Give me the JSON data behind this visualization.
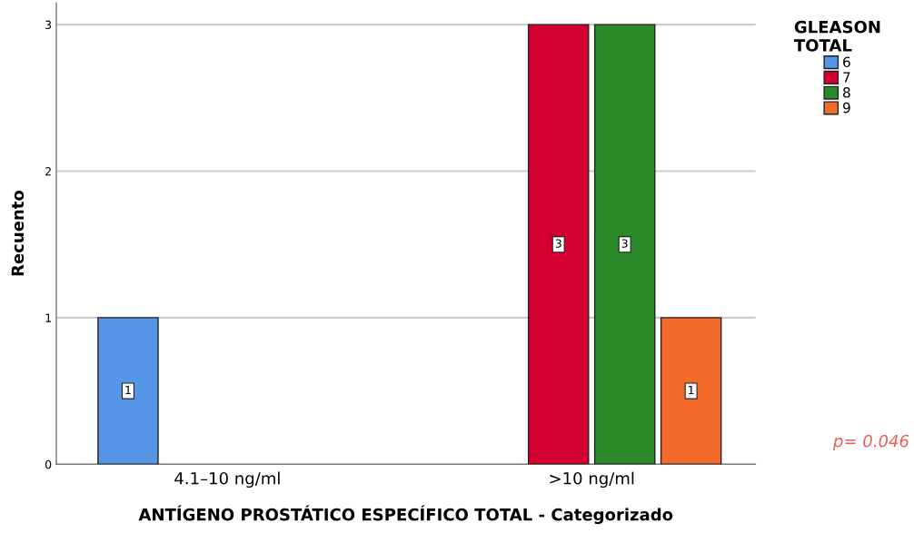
{
  "chart_data": {
    "type": "bar",
    "xlabel": "ANTÍGENO PROSTÁTICO ESPECÍFICO TOTAL - Categorizado",
    "ylabel": "Recuento",
    "categories": [
      "4.1–10 ng/ml",
      ">10 ng/ml"
    ],
    "series": [
      {
        "name": "6",
        "color": "#5596e6",
        "values": [
          1,
          null
        ]
      },
      {
        "name": "7",
        "color": "#d50032",
        "values": [
          null,
          3
        ]
      },
      {
        "name": "8",
        "color": "#2a8a2a",
        "values": [
          null,
          3
        ]
      },
      {
        "name": "9",
        "color": "#f26b2c",
        "values": [
          null,
          1
        ]
      }
    ],
    "legend_title": "GLEASON\nTOTAL",
    "legend": "top right",
    "ylim": [
      0,
      3.15
    ],
    "yticks": [
      0,
      1,
      2,
      3
    ],
    "grid": "y",
    "data_labels": true,
    "annotations": [
      "p= 0.046"
    ]
  }
}
